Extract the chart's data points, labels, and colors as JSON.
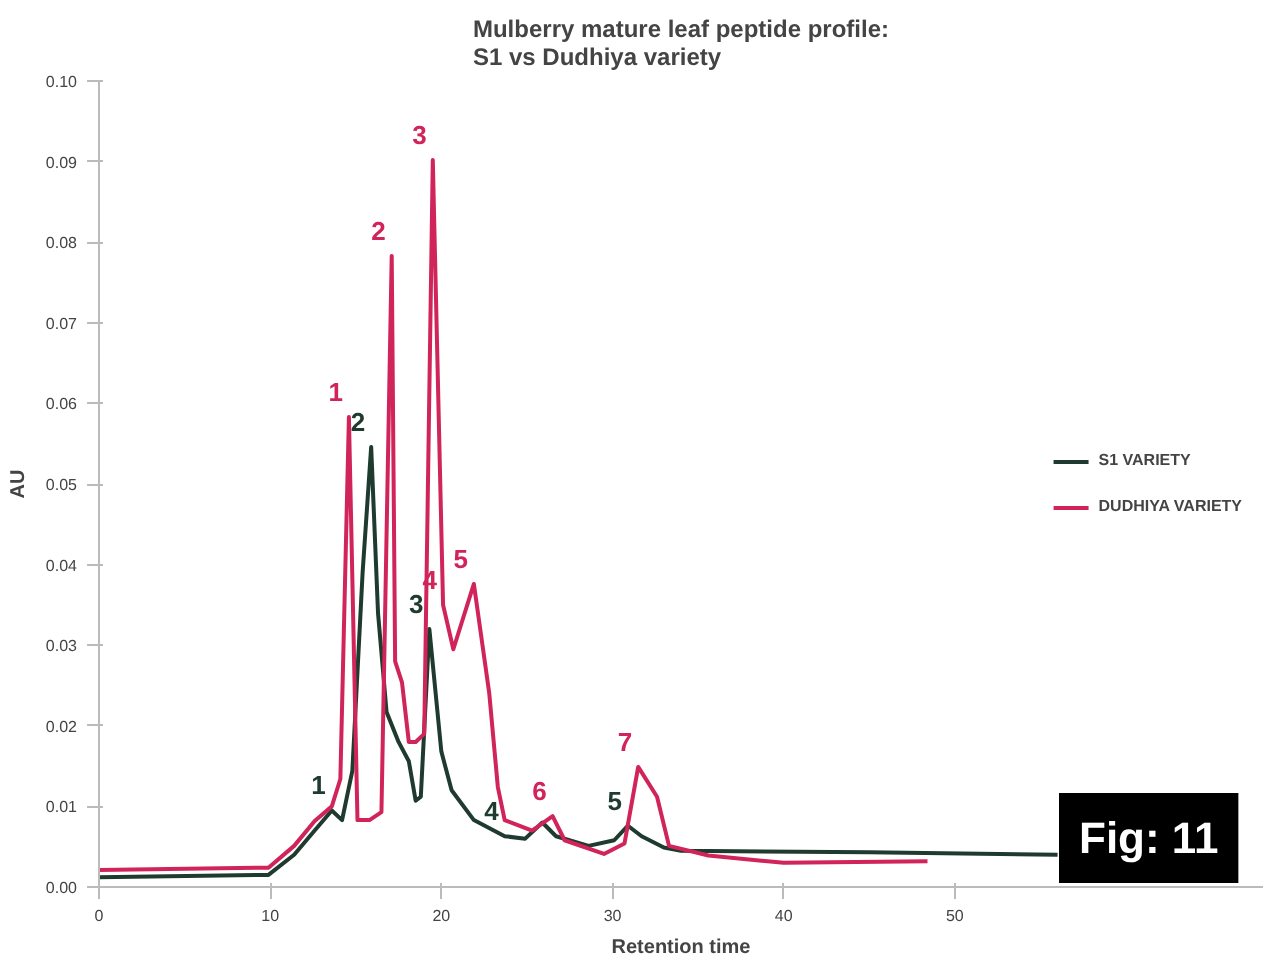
{
  "chart_data": {
    "type": "line",
    "title": "Mulberry mature leaf peptide profile:\nS1 vs Dudhiya variety",
    "xlabel": "Retention time",
    "ylabel": "AU",
    "xlim": [
      0,
      68
    ],
    "xticks": [
      0,
      10,
      20,
      30,
      40,
      50
    ],
    "ylim": [
      0,
      0.1
    ],
    "yticks": [
      {
        "value": 0,
        "label": "0.00"
      },
      {
        "value": 0.01,
        "label": "0.01"
      },
      {
        "value": 0.02,
        "label": "0.02"
      },
      {
        "value": 0.03,
        "label": "0.03"
      },
      {
        "value": 0.04,
        "label": "0.04"
      },
      {
        "value": 0.05,
        "label": "0.05"
      },
      {
        "value": 0.06,
        "label": "0.06"
      },
      {
        "value": 0.07,
        "label": "0.07"
      },
      {
        "value": 0.08,
        "label": "0.08"
      },
      {
        "value": 0.09,
        "label": "0.09"
      },
      {
        "value": 0.1,
        "label": "0.10"
      }
    ],
    "grid": false,
    "legend": "right",
    "marker": "none",
    "line_style": "solid",
    "series": [
      {
        "name": "S1 VARIETY",
        "color": "#1f3a2e",
        "x": [
          0,
          9.9,
          11.4,
          12.6,
          13.6,
          14.2,
          14.8,
          15.4,
          15.9,
          16.3,
          16.8,
          17.5,
          18.1,
          18.5,
          18.8,
          19.3,
          20.0,
          20.6,
          21.9,
          23.7,
          24.9,
          25.9,
          26.7,
          28.6,
          30.1,
          30.9,
          31.7,
          33.0,
          34.0,
          45.0,
          56.0
        ],
        "values": [
          0.0012,
          0.0015,
          0.004,
          0.007,
          0.0095,
          0.0083,
          0.0144,
          0.039,
          0.0546,
          0.034,
          0.0217,
          0.018,
          0.0156,
          0.0107,
          0.0112,
          0.032,
          0.0168,
          0.012,
          0.0083,
          0.0063,
          0.006,
          0.008,
          0.0063,
          0.0051,
          0.0058,
          0.0076,
          0.0063,
          0.0049,
          0.0045,
          0.0043,
          0.004
        ]
      },
      {
        "name": "DUDHIYA VARIETY",
        "color": "#d0245a",
        "x": [
          0,
          9.9,
          11.4,
          12.6,
          13.6,
          14.1,
          14.6,
          15.1,
          15.8,
          16.5,
          17.1,
          17.3,
          17.7,
          18.1,
          18.5,
          19.0,
          19.5,
          20.1,
          20.7,
          21.9,
          22.8,
          23.3,
          23.7,
          25.3,
          26.5,
          27.2,
          29.5,
          30.7,
          31.5,
          32.6,
          33.3,
          35.6,
          40.0,
          48.4
        ],
        "values": [
          0.0021,
          0.0024,
          0.0051,
          0.0082,
          0.01,
          0.0134,
          0.0583,
          0.0083,
          0.0083,
          0.0093,
          0.0783,
          0.028,
          0.0254,
          0.018,
          0.018,
          0.019,
          0.0902,
          0.035,
          0.0295,
          0.0376,
          0.024,
          0.0124,
          0.0083,
          0.007,
          0.0088,
          0.0058,
          0.0041,
          0.0054,
          0.0149,
          0.0112,
          0.0051,
          0.0039,
          0.003,
          0.0032
        ]
      }
    ],
    "annotations": [
      {
        "text": "1",
        "x": 14.6,
        "y": 0.0583
      },
      {
        "text": "2",
        "x": 17.1,
        "y": 0.0783
      },
      {
        "text": "3",
        "x": 19.5,
        "y": 0.0902
      },
      {
        "text": "4",
        "x": 20.1,
        "y": 0.035
      },
      {
        "text": "5",
        "x": 21.9,
        "y": 0.0376
      },
      {
        "text": "6",
        "x": 26.5,
        "y": 0.0088
      },
      {
        "text": "7",
        "x": 31.5,
        "y": 0.0149
      },
      {
        "text": "1",
        "x": 13.6,
        "y": 0.0095
      },
      {
        "text": "2",
        "x": 15.9,
        "y": 0.0546
      },
      {
        "text": "3",
        "x": 19.3,
        "y": 0.032
      },
      {
        "text": "4",
        "x": 23.7,
        "y": 0.0063
      },
      {
        "text": "5",
        "x": 30.9,
        "y": 0.0076
      },
      "Fig: 11"
    ]
  }
}
